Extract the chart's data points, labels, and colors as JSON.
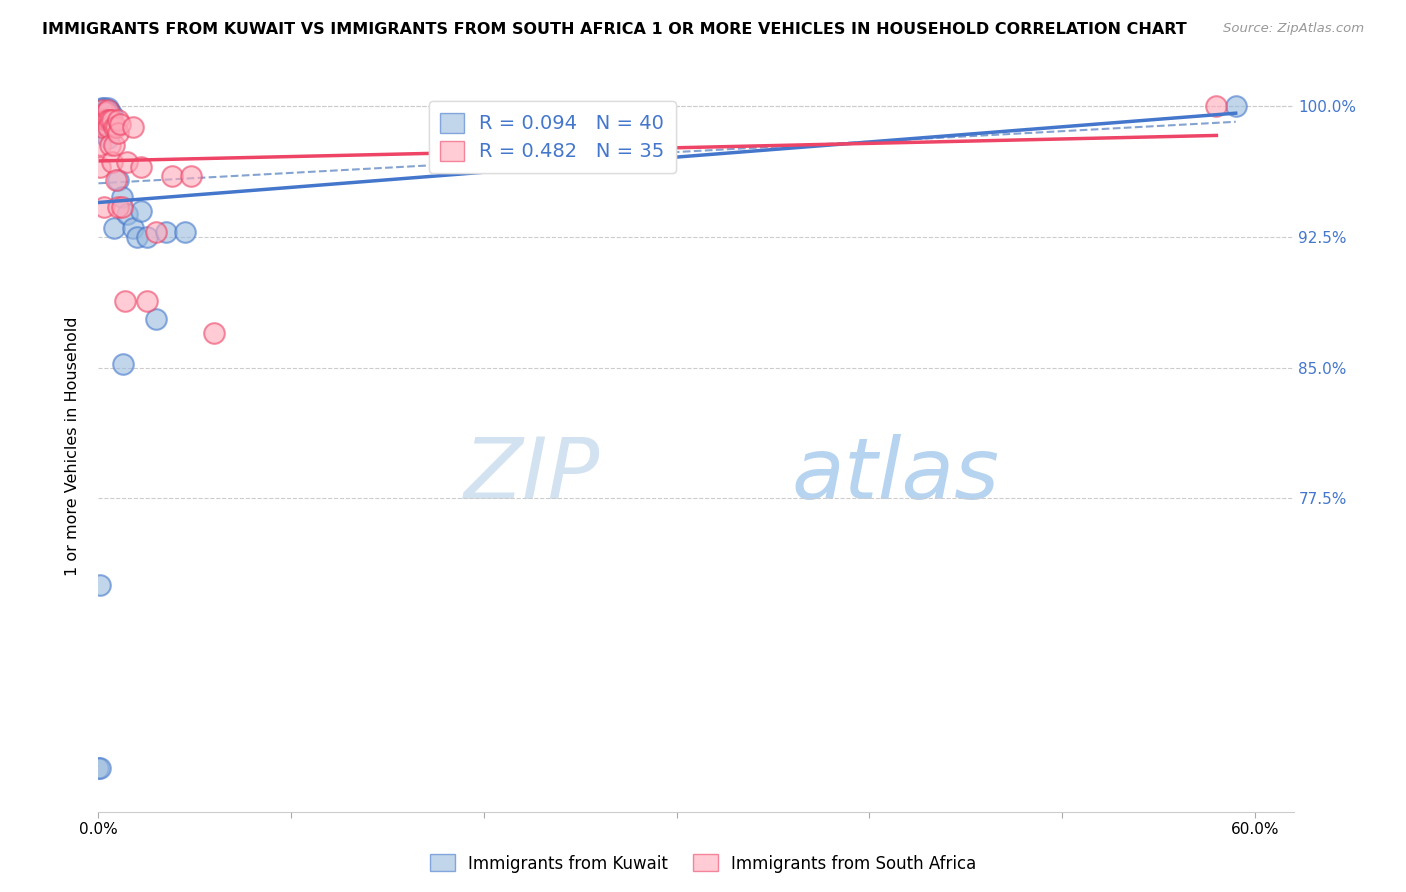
{
  "title": "IMMIGRANTS FROM KUWAIT VS IMMIGRANTS FROM SOUTH AFRICA 1 OR MORE VEHICLES IN HOUSEHOLD CORRELATION CHART",
  "source": "Source: ZipAtlas.com",
  "ylabel": "1 or more Vehicles in Household",
  "legend1_label": "R = 0.094   N = 40",
  "legend2_label": "R = 0.482   N = 35",
  "legend_kuwait_label": "Immigrants from Kuwait",
  "legend_sa_label": "Immigrants from South Africa",
  "kuwait_color": "#99BBDD",
  "sa_color": "#FFAABB",
  "kuwait_line_color": "#4477CC",
  "sa_line_color": "#EE4466",
  "kuwait_x": [
    0.0,
    0.001,
    0.001,
    0.002,
    0.002,
    0.002,
    0.002,
    0.003,
    0.003,
    0.003,
    0.003,
    0.003,
    0.003,
    0.004,
    0.004,
    0.004,
    0.005,
    0.005,
    0.005,
    0.005,
    0.005,
    0.005,
    0.005,
    0.006,
    0.006,
    0.007,
    0.007,
    0.008,
    0.01,
    0.012,
    0.013,
    0.015,
    0.018,
    0.02,
    0.022,
    0.025,
    0.03,
    0.035,
    0.045,
    0.59
  ],
  "kuwait_y": [
    0.62,
    0.725,
    0.62,
    0.999,
    0.998,
    0.993,
    0.988,
    0.999,
    0.997,
    0.995,
    0.992,
    0.989,
    0.984,
    0.997,
    0.993,
    0.988,
    0.999,
    0.998,
    0.996,
    0.993,
    0.99,
    0.986,
    0.982,
    0.997,
    0.994,
    0.995,
    0.988,
    0.93,
    0.958,
    0.948,
    0.852,
    0.938,
    0.93,
    0.925,
    0.94,
    0.925,
    0.878,
    0.928,
    0.928,
    1.0
  ],
  "sa_x": [
    0.001,
    0.001,
    0.001,
    0.002,
    0.002,
    0.003,
    0.003,
    0.004,
    0.004,
    0.005,
    0.005,
    0.005,
    0.006,
    0.006,
    0.007,
    0.007,
    0.008,
    0.008,
    0.009,
    0.009,
    0.01,
    0.01,
    0.01,
    0.011,
    0.012,
    0.014,
    0.015,
    0.018,
    0.022,
    0.025,
    0.03,
    0.038,
    0.048,
    0.06,
    0.58
  ],
  "sa_y": [
    0.99,
    0.978,
    0.965,
    0.998,
    0.988,
    0.993,
    0.942,
    0.997,
    0.992,
    0.998,
    0.992,
    0.988,
    0.992,
    0.978,
    0.992,
    0.968,
    0.988,
    0.978,
    0.988,
    0.958,
    0.992,
    0.985,
    0.942,
    0.99,
    0.942,
    0.888,
    0.968,
    0.988,
    0.965,
    0.888,
    0.928,
    0.96,
    0.96,
    0.87,
    1.0
  ],
  "xlim": [
    0.0,
    0.62
  ],
  "ylim": [
    0.595,
    1.015
  ],
  "y_ticks": [
    1.0,
    0.925,
    0.85,
    0.775
  ],
  "y_tick_labels": [
    "100.0%",
    "92.5%",
    "85.0%",
    "77.5%"
  ],
  "x_ticks": [
    0.0,
    0.1,
    0.2,
    0.3,
    0.4,
    0.5,
    0.6
  ],
  "x_tick_labels": [
    "0.0%",
    "",
    "",
    "",
    "",
    "",
    "60.0%"
  ]
}
